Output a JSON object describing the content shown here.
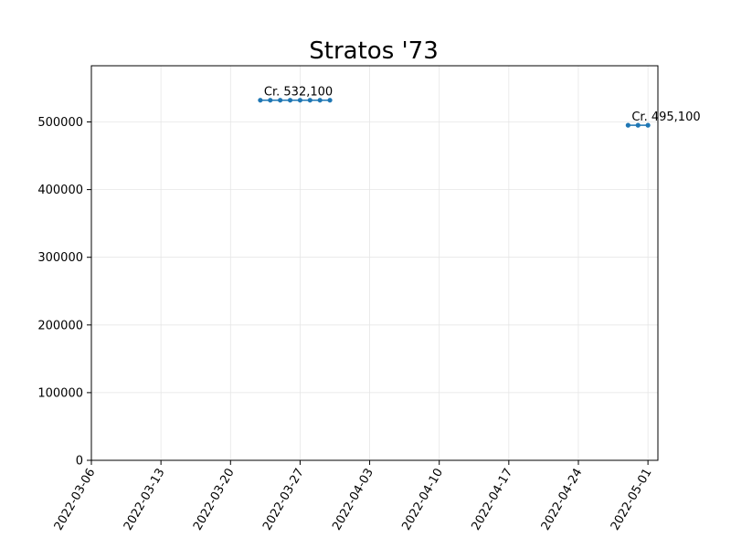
{
  "chart_data": {
    "type": "line",
    "title": "Stratos '73",
    "xlabel": "",
    "ylabel": "",
    "x_type": "date",
    "xlim": [
      "2022-03-06",
      "2022-05-02"
    ],
    "ylim": [
      0,
      583000
    ],
    "x_ticks": [
      "2022-03-06",
      "2022-03-13",
      "2022-03-20",
      "2022-03-27",
      "2022-04-03",
      "2022-04-10",
      "2022-04-17",
      "2022-04-24",
      "2022-05-01"
    ],
    "y_ticks": [
      0,
      100000,
      200000,
      300000,
      400000,
      500000
    ],
    "y_tick_labels": [
      "0",
      "100000",
      "200000",
      "300000",
      "400000",
      "500000"
    ],
    "grid": true,
    "color": "#1f77b4",
    "series": [
      {
        "x": [
          "2022-03-23",
          "2022-03-24",
          "2022-03-25",
          "2022-03-26",
          "2022-03-27",
          "2022-03-28",
          "2022-03-29",
          "2022-03-30"
        ],
        "y": [
          532100,
          532100,
          532100,
          532100,
          532100,
          532100,
          532100,
          532100
        ]
      },
      {
        "x": [
          "2022-04-29",
          "2022-04-30",
          "2022-05-01"
        ],
        "y": [
          495100,
          495100,
          495100
        ]
      }
    ],
    "annotations": [
      {
        "text": "Cr. 532,100",
        "x": "2022-03-23",
        "y": 532100
      },
      {
        "text": "Cr. 495,100",
        "x": "2022-04-29",
        "y": 495100
      }
    ]
  }
}
